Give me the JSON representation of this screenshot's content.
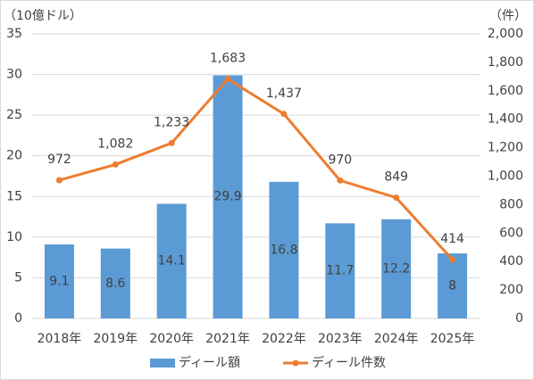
{
  "chart_data": {
    "type": "combo",
    "ylabel": "（10億ドル）",
    "y2label": "（件）",
    "categories": [
      "2018年",
      "2019年",
      "2020年",
      "2021年",
      "2022年",
      "2023年",
      "2024年",
      "2025年"
    ],
    "series": [
      {
        "name": "ディール額",
        "type": "bar",
        "color": "#5b9bd5",
        "values": [
          9.1,
          8.6,
          14.1,
          29.9,
          16.8,
          11.7,
          12.2,
          8
        ]
      },
      {
        "name": "ディール件数",
        "type": "line",
        "axis": "y2",
        "color": "#ed7d31",
        "values": [
          972,
          1082,
          1233,
          1683,
          1437,
          970,
          849,
          414
        ],
        "value_labels": [
          "972",
          "1,082",
          "1,233",
          "1,683",
          "1,437",
          "970",
          "849",
          "414"
        ]
      }
    ],
    "ylim": [
      0,
      35
    ],
    "yticks": [
      0,
      5,
      10,
      15,
      20,
      25,
      30,
      35
    ],
    "y2lim": [
      0,
      2000
    ],
    "y2ticks": [
      0,
      200,
      400,
      600,
      800,
      {
        "value": 1000,
        "label": "1,000"
      },
      {
        "value": 1200,
        "label": "1,200"
      },
      {
        "value": 1400,
        "label": "1,400"
      },
      {
        "value": 1600,
        "label": "1,600"
      },
      {
        "value": 1800,
        "label": "1,800"
      },
      {
        "value": 2000,
        "label": "2,000"
      }
    ],
    "grid": true,
    "legend": "bottom"
  }
}
